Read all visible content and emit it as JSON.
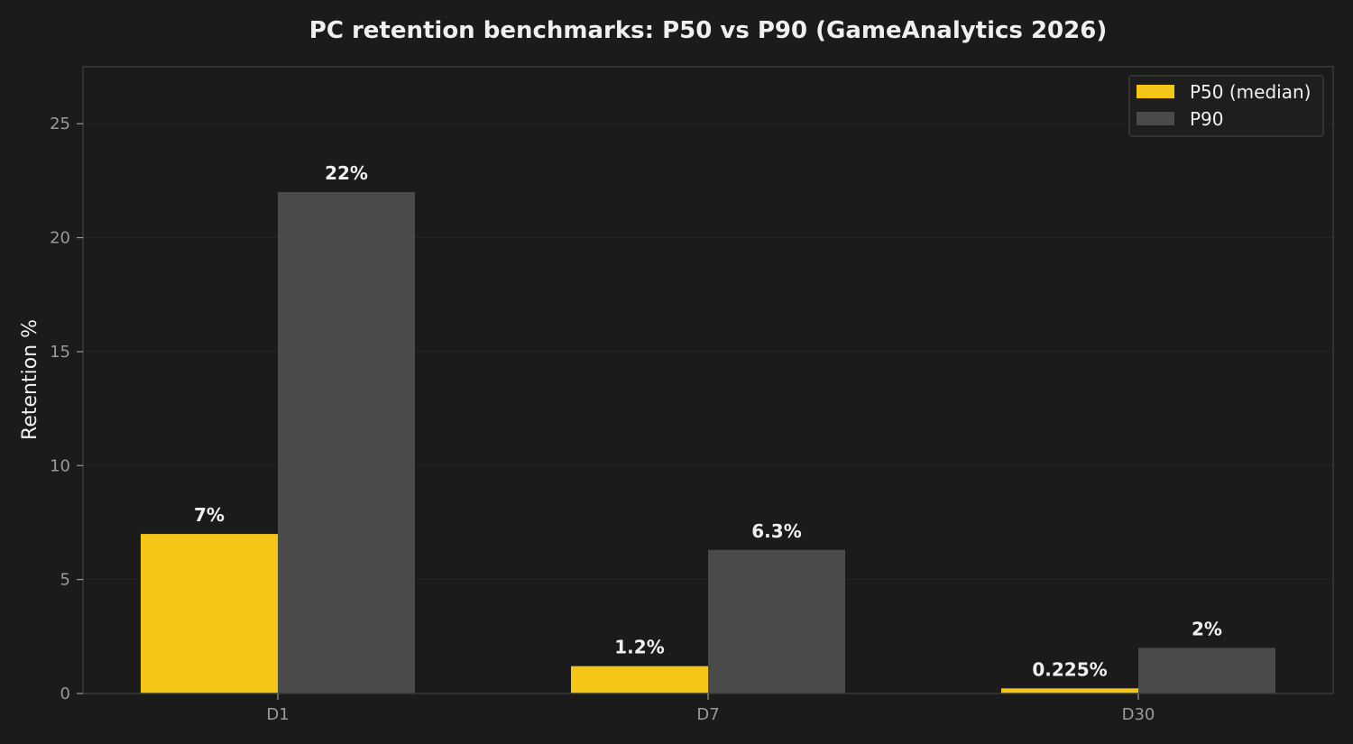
{
  "chart_data": {
    "type": "bar",
    "title": "PC retention benchmarks: P50 vs P90 (GameAnalytics 2026)",
    "xlabel": "",
    "ylabel": "Retention %",
    "categories": [
      "D1",
      "D7",
      "D30"
    ],
    "series": [
      {
        "name": "P50 (median)",
        "values": [
          7,
          1.2,
          0.225
        ],
        "labels": [
          "7%",
          "1.2%",
          "0.225%"
        ],
        "color": "#f5c518"
      },
      {
        "name": "P90",
        "values": [
          22,
          6.3,
          2
        ],
        "labels": [
          "22%",
          "6.3%",
          "2%"
        ],
        "color": "#4a4a4a"
      }
    ],
    "ylim": [
      0,
      27.5
    ],
    "yticks": [
      0,
      5,
      10,
      15,
      20,
      25
    ],
    "ytick_labels": [
      "0",
      "5",
      "10",
      "15",
      "20",
      "25"
    ],
    "grid": true,
    "legend_position": "top-right",
    "colors": {
      "background": "#1b1b1b",
      "axes_edge": "#3a3a3a",
      "grid": "#262626",
      "text": "#f0f0f0",
      "ticks": "#9a9a9a"
    }
  }
}
